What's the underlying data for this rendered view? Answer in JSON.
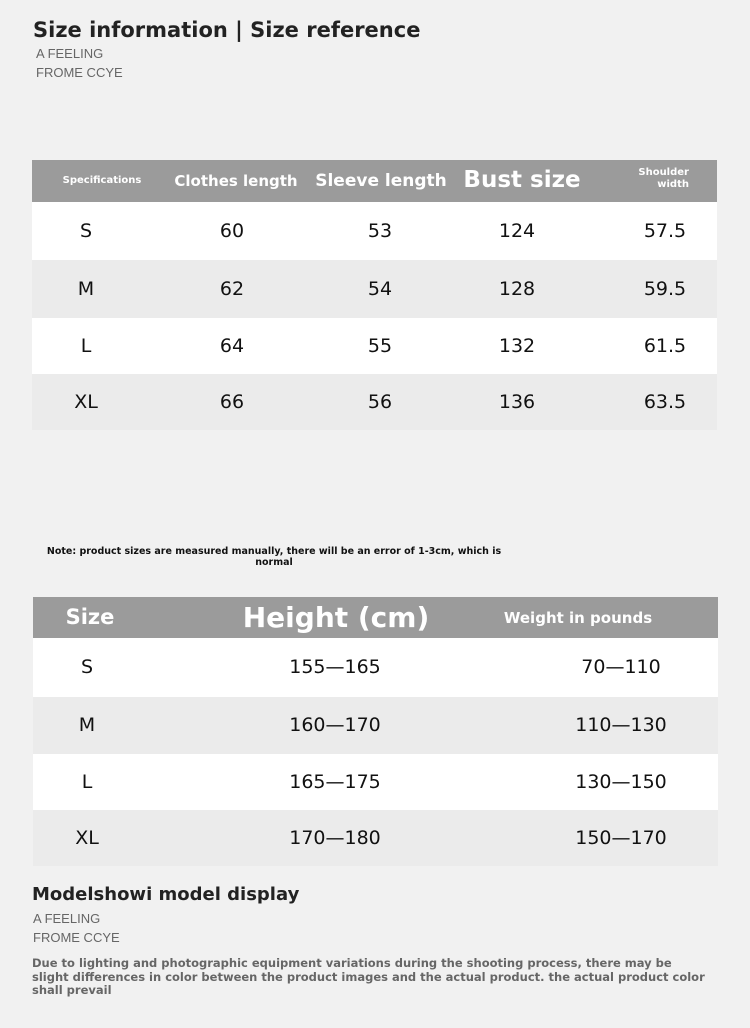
{
  "header": {
    "title": "Size information | Size reference",
    "sub1": "A FEELING",
    "sub2": "FROME CCYE"
  },
  "table1": {
    "columns": [
      "Specifications",
      "Clothes length",
      "Sleeve length",
      "Bust size",
      "Shoulder width"
    ],
    "rows": [
      [
        "S",
        "60",
        "53",
        "124",
        "57.5"
      ],
      [
        "M",
        "62",
        "54",
        "128",
        "59.5"
      ],
      [
        "L",
        "64",
        "55",
        "132",
        "61.5"
      ],
      [
        "XL",
        "66",
        "56",
        "136",
        "63.5"
      ]
    ]
  },
  "note": "Note: product sizes are measured manually, there will be an error of 1-3cm, which is normal",
  "table2": {
    "columns": [
      "Size",
      "Height (cm)",
      "Weight in pounds"
    ],
    "rows": [
      [
        "S",
        "155—165",
        "70—110"
      ],
      [
        "M",
        "160—170",
        "110—130"
      ],
      [
        "L",
        "165—175",
        "130—150"
      ],
      [
        "XL",
        "170—180",
        "150—170"
      ]
    ]
  },
  "footer": {
    "title": "Modelshowi model display",
    "sub1": "A FEELING",
    "sub2": "FROME CCYE",
    "disclaimer": "Due to lighting and photographic equipment variations during the shooting process, there may be slight differences in color between the product images and the actual product. the actual product color shall prevail"
  }
}
